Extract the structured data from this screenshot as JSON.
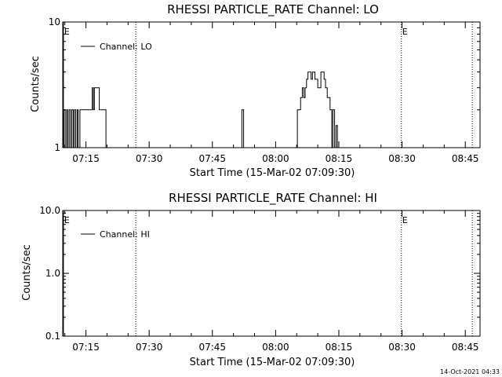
{
  "timestamp": "14-Oct-2021 04:33",
  "chart_data": [
    {
      "type": "line",
      "title": "RHESSI PARTICLE_RATE Channel: LO",
      "xlabel": "Start Time (15-Mar-02 07:09:30)",
      "ylabel": "Counts/sec",
      "yscale": "log",
      "ylim": [
        1,
        10
      ],
      "xlim": [
        "07:09:30",
        "08:48:30"
      ],
      "yticks": [
        {
          "value": 1,
          "label": "1"
        },
        {
          "value": 10,
          "label": "10"
        }
      ],
      "xticks": [
        "07:15",
        "07:30",
        "07:45",
        "08:00",
        "08:15",
        "08:30",
        "08:45"
      ],
      "legend": {
        "position": "top-left",
        "entries": [
          "Channel: LO"
        ]
      },
      "event_lines": [
        {
          "time": "07:09:40",
          "label": "E",
          "style": "solid"
        },
        {
          "time": "07:26:50",
          "label": "",
          "style": "dotted"
        },
        {
          "time": "08:29:50",
          "label": "E",
          "style": "dotted"
        },
        {
          "time": "08:46:40",
          "label": "",
          "style": "dotted"
        }
      ],
      "series": [
        {
          "name": "Channel: LO",
          "steps": [
            [
              "07:09:30",
              1
            ],
            [
              "07:09:45",
              2
            ],
            [
              "07:10:05",
              1
            ],
            [
              "07:10:25",
              2
            ],
            [
              "07:10:40",
              1
            ],
            [
              "07:11:00",
              2
            ],
            [
              "07:11:20",
              1
            ],
            [
              "07:11:40",
              2
            ],
            [
              "07:12:00",
              1
            ],
            [
              "07:12:15",
              2
            ],
            [
              "07:12:35",
              1
            ],
            [
              "07:12:55",
              2
            ],
            [
              "07:13:10",
              1
            ],
            [
              "07:13:35",
              2
            ],
            [
              "07:16:30",
              3
            ],
            [
              "07:16:45",
              2
            ],
            [
              "07:17:00",
              3
            ],
            [
              "07:18:10",
              2
            ],
            [
              "07:19:45",
              1
            ],
            [
              "07:52:00",
              2
            ],
            [
              "07:52:25",
              1
            ],
            [
              "08:05:10",
              2
            ],
            [
              "08:05:55",
              2.5
            ],
            [
              "08:06:20",
              3
            ],
            [
              "08:06:40",
              2.5
            ],
            [
              "08:07:00",
              3
            ],
            [
              "08:07:20",
              3.5
            ],
            [
              "08:07:40",
              4
            ],
            [
              "08:08:25",
              3.5
            ],
            [
              "08:08:45",
              4
            ],
            [
              "08:09:20",
              3.5
            ],
            [
              "08:10:00",
              3
            ],
            [
              "08:10:45",
              4
            ],
            [
              "08:11:30",
              3.5
            ],
            [
              "08:11:50",
              3
            ],
            [
              "08:12:15",
              2.5
            ],
            [
              "08:12:55",
              2
            ],
            [
              "08:13:20",
              1
            ],
            [
              "08:13:35",
              2
            ],
            [
              "08:14:00",
              1
            ],
            [
              "08:14:20",
              1.5
            ],
            [
              "08:14:40",
              1
            ]
          ]
        }
      ]
    },
    {
      "type": "line",
      "title": "RHESSI PARTICLE_RATE Channel: HI",
      "xlabel": "Start Time (15-Mar-02 07:09:30)",
      "ylabel": "Counts/sec",
      "yscale": "log",
      "ylim": [
        0.1,
        10
      ],
      "xlim": [
        "07:09:30",
        "08:48:30"
      ],
      "yticks": [
        {
          "value": 0.1,
          "label": "0.1"
        },
        {
          "value": 1,
          "label": "1.0"
        },
        {
          "value": 10,
          "label": "10.0"
        }
      ],
      "xticks": [
        "07:15",
        "07:30",
        "07:45",
        "08:00",
        "08:15",
        "08:30",
        "08:45"
      ],
      "legend": {
        "position": "top-left",
        "entries": [
          "Channel: HI"
        ]
      },
      "event_lines": [
        {
          "time": "07:09:40",
          "label": "E",
          "style": "solid"
        },
        {
          "time": "07:26:50",
          "label": "",
          "style": "dotted"
        },
        {
          "time": "08:29:50",
          "label": "E",
          "style": "dotted"
        },
        {
          "time": "08:46:40",
          "label": "",
          "style": "dotted"
        }
      ],
      "series": [
        {
          "name": "Channel: HI",
          "steps": []
        }
      ]
    }
  ]
}
